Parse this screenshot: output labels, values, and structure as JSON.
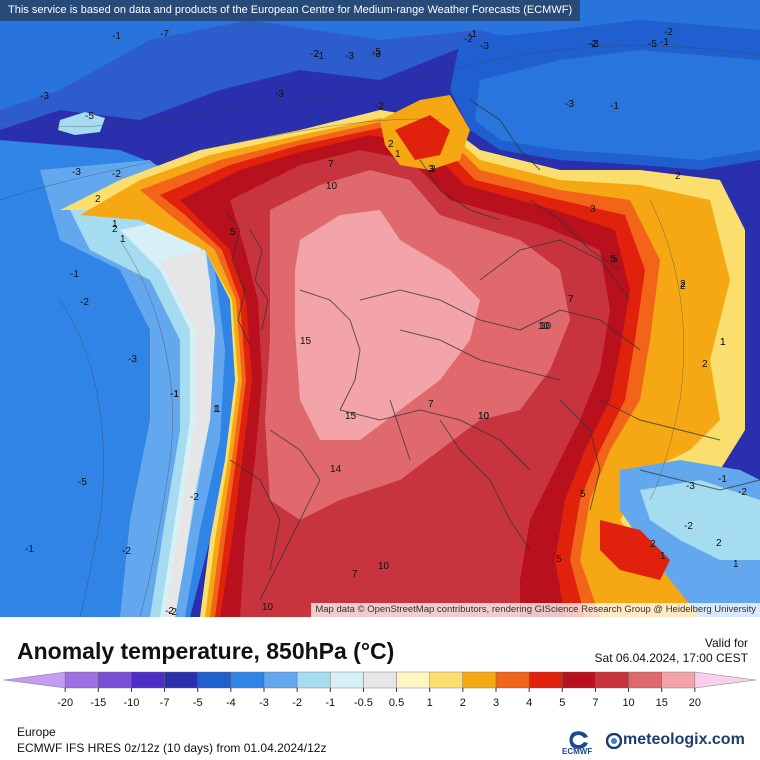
{
  "notice": "This service is based on data and products of the European Centre for Medium-range Weather Forecasts (ECMWF)",
  "attribution": "Map data © OpenStreetMap contributors, rendering GIScience Research Group @ Heidelberg University",
  "title": "Anomaly temperature, 850hPa (°C)",
  "valid_label": "Valid for",
  "valid_time": "Sat 06.04.2024, 17:00 CEST",
  "region": "Europe",
  "model_run": "ECMWF IFS HRES 0z/12z (10 days) from 01.04.2024/12z",
  "logos": {
    "ecmwf": "ECMWF",
    "meteologix": "meteologix.com"
  },
  "scale": {
    "ticks": [
      "-20",
      "-15",
      "-10",
      "-7",
      "-5",
      "-4",
      "-3",
      "-2",
      "-1",
      "-0.5",
      "0.5",
      "1",
      "2",
      "3",
      "4",
      "5",
      "7",
      "10",
      "15",
      "20"
    ],
    "colors": [
      "#c49cf2",
      "#9c6fe2",
      "#7a4fd6",
      "#4b2fc4",
      "#2a2fae",
      "#1f5fd0",
      "#2f84e6",
      "#63a8ee",
      "#a6dcf0",
      "#d6f0f6",
      "#e6e6e6",
      "#fff6c4",
      "#fbdf6e",
      "#f6a814",
      "#f2641a",
      "#e0220c",
      "#b8101c",
      "#c8343e",
      "#e0696e",
      "#f2a4a8",
      "#f8d0ec"
    ]
  },
  "contour_labels": [
    {
      "text": "-7"
    },
    {
      "text": "-5"
    },
    {
      "text": "-3"
    },
    {
      "text": "-1"
    },
    {
      "text": "-2"
    },
    {
      "text": "-3"
    },
    {
      "text": "-1"
    },
    {
      "text": "-3"
    },
    {
      "text": "-2"
    },
    {
      "text": "-1"
    },
    {
      "text": "-3"
    },
    {
      "text": "-5"
    },
    {
      "text": "-3"
    },
    {
      "text": "-2"
    },
    {
      "text": "-3"
    },
    {
      "text": "-5"
    },
    {
      "text": "-2"
    },
    {
      "text": "-1"
    },
    {
      "text": "-2"
    },
    {
      "text": "-3"
    },
    {
      "text": "-1"
    },
    {
      "text": "2"
    },
    {
      "text": "1"
    },
    {
      "text": "-2"
    },
    {
      "text": "-3"
    },
    {
      "text": "-1"
    },
    {
      "text": "1"
    },
    {
      "text": "2"
    },
    {
      "text": "5"
    },
    {
      "text": "7"
    },
    {
      "text": "10"
    },
    {
      "text": "3"
    },
    {
      "text": "2"
    },
    {
      "text": "1"
    },
    {
      "text": "2"
    },
    {
      "text": "3"
    },
    {
      "text": "5"
    },
    {
      "text": "7"
    },
    {
      "text": "10"
    },
    {
      "text": "15"
    },
    {
      "text": "15"
    },
    {
      "text": "14"
    },
    {
      "text": "10"
    },
    {
      "text": "7"
    },
    {
      "text": "5"
    },
    {
      "text": "2"
    },
    {
      "text": "1"
    },
    {
      "text": "2"
    },
    {
      "text": "1"
    },
    {
      "text": "-1"
    },
    {
      "text": "-2"
    },
    {
      "text": "-3"
    },
    {
      "text": "-1"
    },
    {
      "text": "-2"
    },
    {
      "text": "-5"
    },
    {
      "text": "-2"
    },
    {
      "text": "-2"
    },
    {
      "text": "-3"
    },
    {
      "text": "-1"
    },
    {
      "text": "-2"
    },
    {
      "text": "2"
    },
    {
      "text": "1"
    },
    {
      "text": "10"
    },
    {
      "text": "5"
    },
    {
      "text": "7"
    },
    {
      "text": "10"
    },
    {
      "text": "2"
    },
    {
      "text": "1"
    },
    {
      "text": "-1"
    },
    {
      "text": "1"
    },
    {
      "text": "-2"
    },
    {
      "text": "3"
    },
    {
      "text": "2"
    },
    {
      "text": "1"
    },
    {
      "text": "10"
    },
    {
      "text": "7"
    },
    {
      "text": "5"
    },
    {
      "text": "10"
    },
    {
      "text": "-2"
    }
  ]
}
